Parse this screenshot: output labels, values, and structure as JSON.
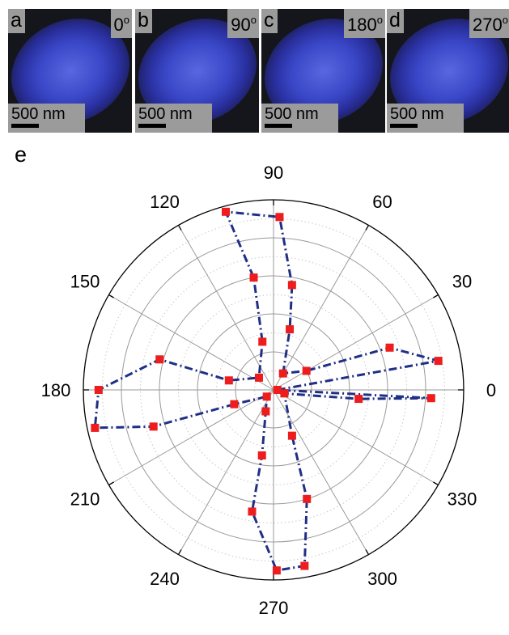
{
  "panels": [
    {
      "letter": "a",
      "angle": "0",
      "unit": "o",
      "scale_label": "500 nm"
    },
    {
      "letter": "b",
      "angle": "90",
      "unit": "o",
      "scale_label": "500 nm"
    },
    {
      "letter": "c",
      "angle": "180",
      "unit": "o",
      "scale_label": "500 nm"
    },
    {
      "letter": "d",
      "angle": "270",
      "unit": "o",
      "scale_label": "500 nm"
    }
  ],
  "chart_data": {
    "type": "scatter",
    "subtype": "polar",
    "panel_label": "e",
    "angular_ticks": [
      0,
      30,
      60,
      90,
      120,
      150,
      180,
      210,
      240,
      270,
      300,
      330
    ],
    "radial_range": [
      0,
      1
    ],
    "radial_rings": [
      0.2,
      0.4,
      0.6,
      0.8,
      1.0
    ],
    "radial_minor_rings": [
      0.1,
      0.3,
      0.5,
      0.7,
      0.9
    ],
    "grid": true,
    "series": [
      {
        "color": "#1f2f86",
        "marker_color": "#ee1c1c",
        "line_style": "dash-dot",
        "points": [
          {
            "theta": 0,
            "r": 0.02
          },
          {
            "theta": 10,
            "r": 0.88
          },
          {
            "theta": 20,
            "r": 0.65
          },
          {
            "theta": 30,
            "r": 0.2
          },
          {
            "theta": 60,
            "r": 0.1
          },
          {
            "theta": 75,
            "r": 0.33
          },
          {
            "theta": 80,
            "r": 0.56
          },
          {
            "theta": 88,
            "r": 0.91
          },
          {
            "theta": 105,
            "r": 0.97
          },
          {
            "theta": 100,
            "r": 0.6
          },
          {
            "theta": 103,
            "r": 0.26
          },
          {
            "theta": 140,
            "r": 0.1
          },
          {
            "theta": 168,
            "r": 0.24
          },
          {
            "theta": 165,
            "r": 0.62
          },
          {
            "theta": 180,
            "r": 0.92
          },
          {
            "theta": 192,
            "r": 0.96
          },
          {
            "theta": 197,
            "r": 0.66
          },
          {
            "theta": 200,
            "r": 0.22
          },
          {
            "theta": 225,
            "r": 0.05
          },
          {
            "theta": 250,
            "r": 0.12
          },
          {
            "theta": 260,
            "r": 0.35
          },
          {
            "theta": 260,
            "r": 0.65
          },
          {
            "theta": 271,
            "r": 0.95
          },
          {
            "theta": 280,
            "r": 0.94
          },
          {
            "theta": 287,
            "r": 0.6
          },
          {
            "theta": 292,
            "r": 0.26
          },
          {
            "theta": 342,
            "r": 0.06
          },
          {
            "theta": 354,
            "r": 0.45
          },
          {
            "theta": 357,
            "r": 0.83
          },
          {
            "theta": 0,
            "r": 0.02
          }
        ]
      }
    ]
  }
}
